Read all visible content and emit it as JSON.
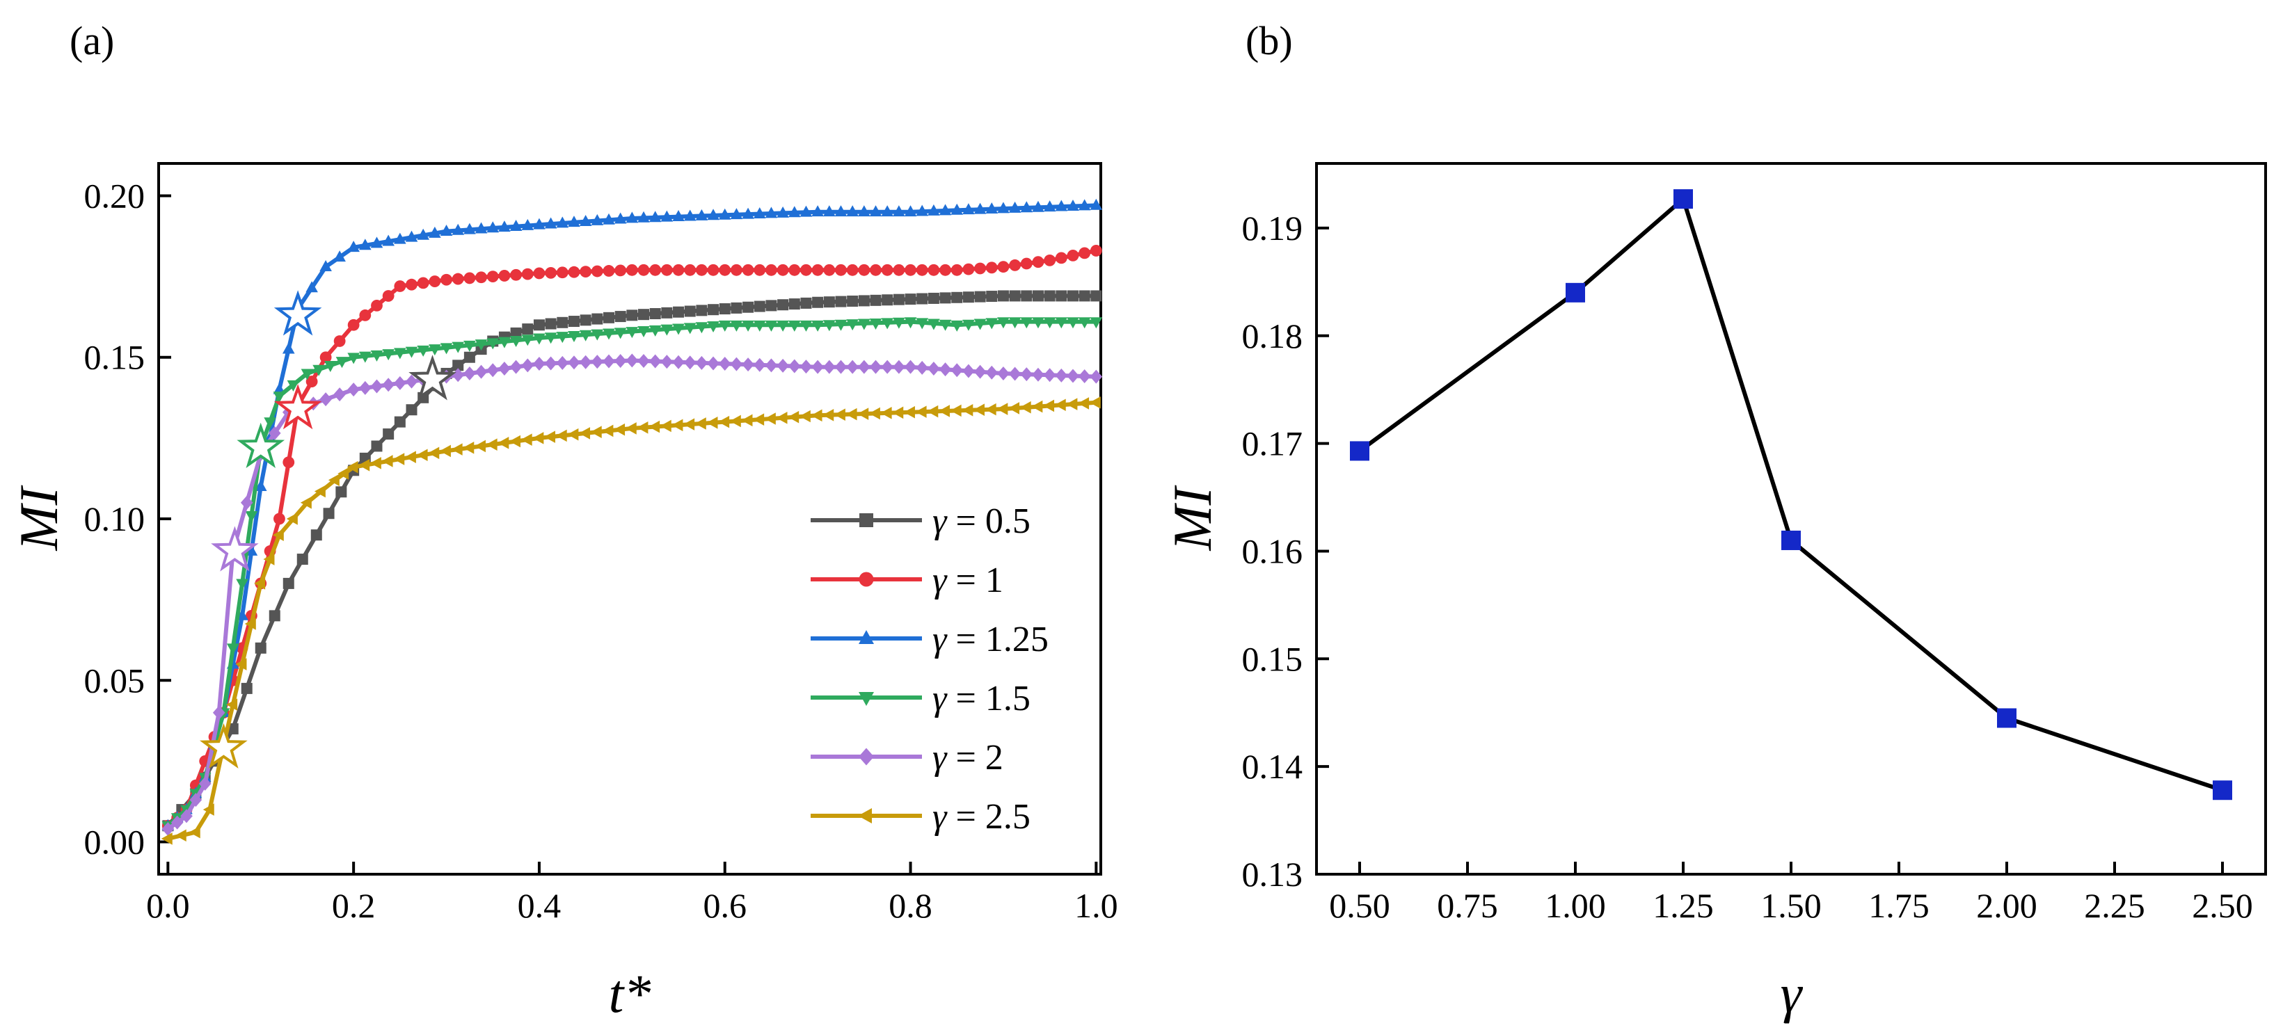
{
  "panels": {
    "a": {
      "label": "(a)"
    },
    "b": {
      "label": "(b)"
    }
  },
  "chart_data": [
    {
      "id": "a",
      "type": "line",
      "title": "",
      "xlabel": "t*",
      "ylabel": "MI",
      "xlim": [
        -0.01,
        1.005
      ],
      "ylim": [
        -0.01,
        0.21
      ],
      "xticks": [
        0.0,
        0.2,
        0.4,
        0.6,
        0.8,
        1.0
      ],
      "xtick_labels": [
        "0.0",
        "0.2",
        "0.4",
        "0.6",
        "0.8",
        "1.0"
      ],
      "yticks": [
        0.0,
        0.05,
        0.1,
        0.15,
        0.2
      ],
      "ytick_labels": [
        "0.00",
        "0.05",
        "0.10",
        "0.15",
        "0.20"
      ],
      "legend_position": "bottom-right",
      "series": [
        {
          "name": "γ = 0.5",
          "gamma_label": "γ",
          "value_label": " = 0.5",
          "color": "#555555",
          "marker": "square",
          "points": [
            [
              0,
              0.005
            ],
            [
              0.03,
              0.015
            ],
            [
              0.05,
              0.025
            ],
            [
              0.07,
              0.035
            ],
            [
              0.1,
              0.06
            ],
            [
              0.13,
              0.08
            ],
            [
              0.16,
              0.095
            ],
            [
              0.2,
              0.115
            ],
            [
              0.25,
              0.13
            ],
            [
              0.3,
              0.145
            ],
            [
              0.35,
              0.155
            ],
            [
              0.4,
              0.16
            ],
            [
              0.5,
              0.163
            ],
            [
              0.6,
              0.165
            ],
            [
              0.7,
              0.167
            ],
            [
              0.8,
              0.168
            ],
            [
              0.9,
              0.169
            ],
            [
              1.0,
              0.169
            ]
          ],
          "star": [
            0.285,
            0.143
          ]
        },
        {
          "name": "γ = 1",
          "gamma_label": "γ",
          "value_label": " = 1",
          "color": "#e8333c",
          "marker": "circle",
          "points": [
            [
              0,
              0.005
            ],
            [
              0.02,
              0.01
            ],
            [
              0.04,
              0.025
            ],
            [
              0.06,
              0.04
            ],
            [
              0.08,
              0.06
            ],
            [
              0.1,
              0.08
            ],
            [
              0.12,
              0.1
            ],
            [
              0.14,
              0.135
            ],
            [
              0.17,
              0.15
            ],
            [
              0.2,
              0.16
            ],
            [
              0.25,
              0.172
            ],
            [
              0.3,
              0.174
            ],
            [
              0.4,
              0.176
            ],
            [
              0.5,
              0.177
            ],
            [
              0.6,
              0.177
            ],
            [
              0.7,
              0.177
            ],
            [
              0.8,
              0.177
            ],
            [
              0.85,
              0.177
            ],
            [
              0.9,
              0.178
            ],
            [
              0.95,
              0.18
            ],
            [
              1.0,
              0.183
            ]
          ],
          "star": [
            0.14,
            0.134
          ]
        },
        {
          "name": "γ = 1.25",
          "gamma_label": "γ",
          "value_label": " = 1.25",
          "color": "#1f6fd6",
          "marker": "triangle-up",
          "points": [
            [
              0,
              0.005
            ],
            [
              0.02,
              0.01
            ],
            [
              0.04,
              0.02
            ],
            [
              0.06,
              0.04
            ],
            [
              0.08,
              0.07
            ],
            [
              0.1,
              0.11
            ],
            [
              0.12,
              0.14
            ],
            [
              0.14,
              0.165
            ],
            [
              0.17,
              0.178
            ],
            [
              0.2,
              0.184
            ],
            [
              0.3,
              0.189
            ],
            [
              0.4,
              0.191
            ],
            [
              0.5,
              0.193
            ],
            [
              0.6,
              0.194
            ],
            [
              0.7,
              0.195
            ],
            [
              0.8,
              0.195
            ],
            [
              0.9,
              0.196
            ],
            [
              1.0,
              0.197
            ]
          ],
          "star": [
            0.14,
            0.163
          ]
        },
        {
          "name": "γ = 1.5",
          "gamma_label": "γ",
          "value_label": " = 1.5",
          "color": "#2faa5e",
          "marker": "triangle-down",
          "points": [
            [
              0,
              0.005
            ],
            [
              0.02,
              0.01
            ],
            [
              0.04,
              0.02
            ],
            [
              0.06,
              0.04
            ],
            [
              0.08,
              0.08
            ],
            [
              0.1,
              0.122
            ],
            [
              0.12,
              0.138
            ],
            [
              0.15,
              0.145
            ],
            [
              0.2,
              0.15
            ],
            [
              0.3,
              0.153
            ],
            [
              0.4,
              0.156
            ],
            [
              0.5,
              0.158
            ],
            [
              0.6,
              0.16
            ],
            [
              0.7,
              0.16
            ],
            [
              0.8,
              0.161
            ],
            [
              0.85,
              0.16
            ],
            [
              0.9,
              0.161
            ],
            [
              1.0,
              0.161
            ]
          ],
          "star": [
            0.1,
            0.122
          ]
        },
        {
          "name": "γ = 2",
          "gamma_label": "γ",
          "value_label": " = 2",
          "color": "#a978d8",
          "marker": "diamond",
          "points": [
            [
              0,
              0.004
            ],
            [
              0.02,
              0.008
            ],
            [
              0.04,
              0.018
            ],
            [
              0.055,
              0.04
            ],
            [
              0.07,
              0.09
            ],
            [
              0.1,
              0.12
            ],
            [
              0.13,
              0.133
            ],
            [
              0.17,
              0.137
            ],
            [
              0.2,
              0.14
            ],
            [
              0.3,
              0.144
            ],
            [
              0.4,
              0.148
            ],
            [
              0.5,
              0.149
            ],
            [
              0.6,
              0.148
            ],
            [
              0.7,
              0.147
            ],
            [
              0.8,
              0.147
            ],
            [
              0.9,
              0.145
            ],
            [
              1.0,
              0.144
            ]
          ],
          "star": [
            0.072,
            0.09
          ]
        },
        {
          "name": "γ = 2.5",
          "gamma_label": "γ",
          "value_label": " = 2.5",
          "color": "#c89b0a",
          "marker": "triangle-left",
          "points": [
            [
              0,
              0.001
            ],
            [
              0.03,
              0.003
            ],
            [
              0.045,
              0.01
            ],
            [
              0.06,
              0.03
            ],
            [
              0.08,
              0.055
            ],
            [
              0.1,
              0.08
            ],
            [
              0.12,
              0.095
            ],
            [
              0.15,
              0.105
            ],
            [
              0.18,
              0.112
            ],
            [
              0.2,
              0.116
            ],
            [
              0.3,
              0.121
            ],
            [
              0.4,
              0.125
            ],
            [
              0.5,
              0.128
            ],
            [
              0.6,
              0.13
            ],
            [
              0.7,
              0.132
            ],
            [
              0.8,
              0.133
            ],
            [
              0.9,
              0.134
            ],
            [
              1.0,
              0.136
            ]
          ],
          "star": [
            0.06,
            0.029
          ]
        }
      ]
    },
    {
      "id": "b",
      "type": "line",
      "title": "",
      "xlabel": "γ",
      "ylabel": "MI",
      "xlim": [
        0.4,
        2.6
      ],
      "ylim": [
        0.13,
        0.196
      ],
      "xticks": [
        0.5,
        0.75,
        1.0,
        1.25,
        1.5,
        1.75,
        2.0,
        2.25,
        2.5
      ],
      "xtick_labels": [
        "0.50",
        "0.75",
        "1.00",
        "1.25",
        "1.50",
        "1.75",
        "2.00",
        "2.25",
        "2.50"
      ],
      "yticks": [
        0.13,
        0.14,
        0.15,
        0.16,
        0.17,
        0.18,
        0.19
      ],
      "ytick_labels": [
        "0.13",
        "0.14",
        "0.15",
        "0.16",
        "0.17",
        "0.18",
        "0.19"
      ],
      "line_color": "#000000",
      "marker_color": "#1428c8",
      "marker": "square",
      "x": [
        0.5,
        1.0,
        1.25,
        1.5,
        2.0,
        2.5
      ],
      "y": [
        0.1693,
        0.184,
        0.1927,
        0.161,
        0.1445,
        0.1378
      ]
    }
  ]
}
